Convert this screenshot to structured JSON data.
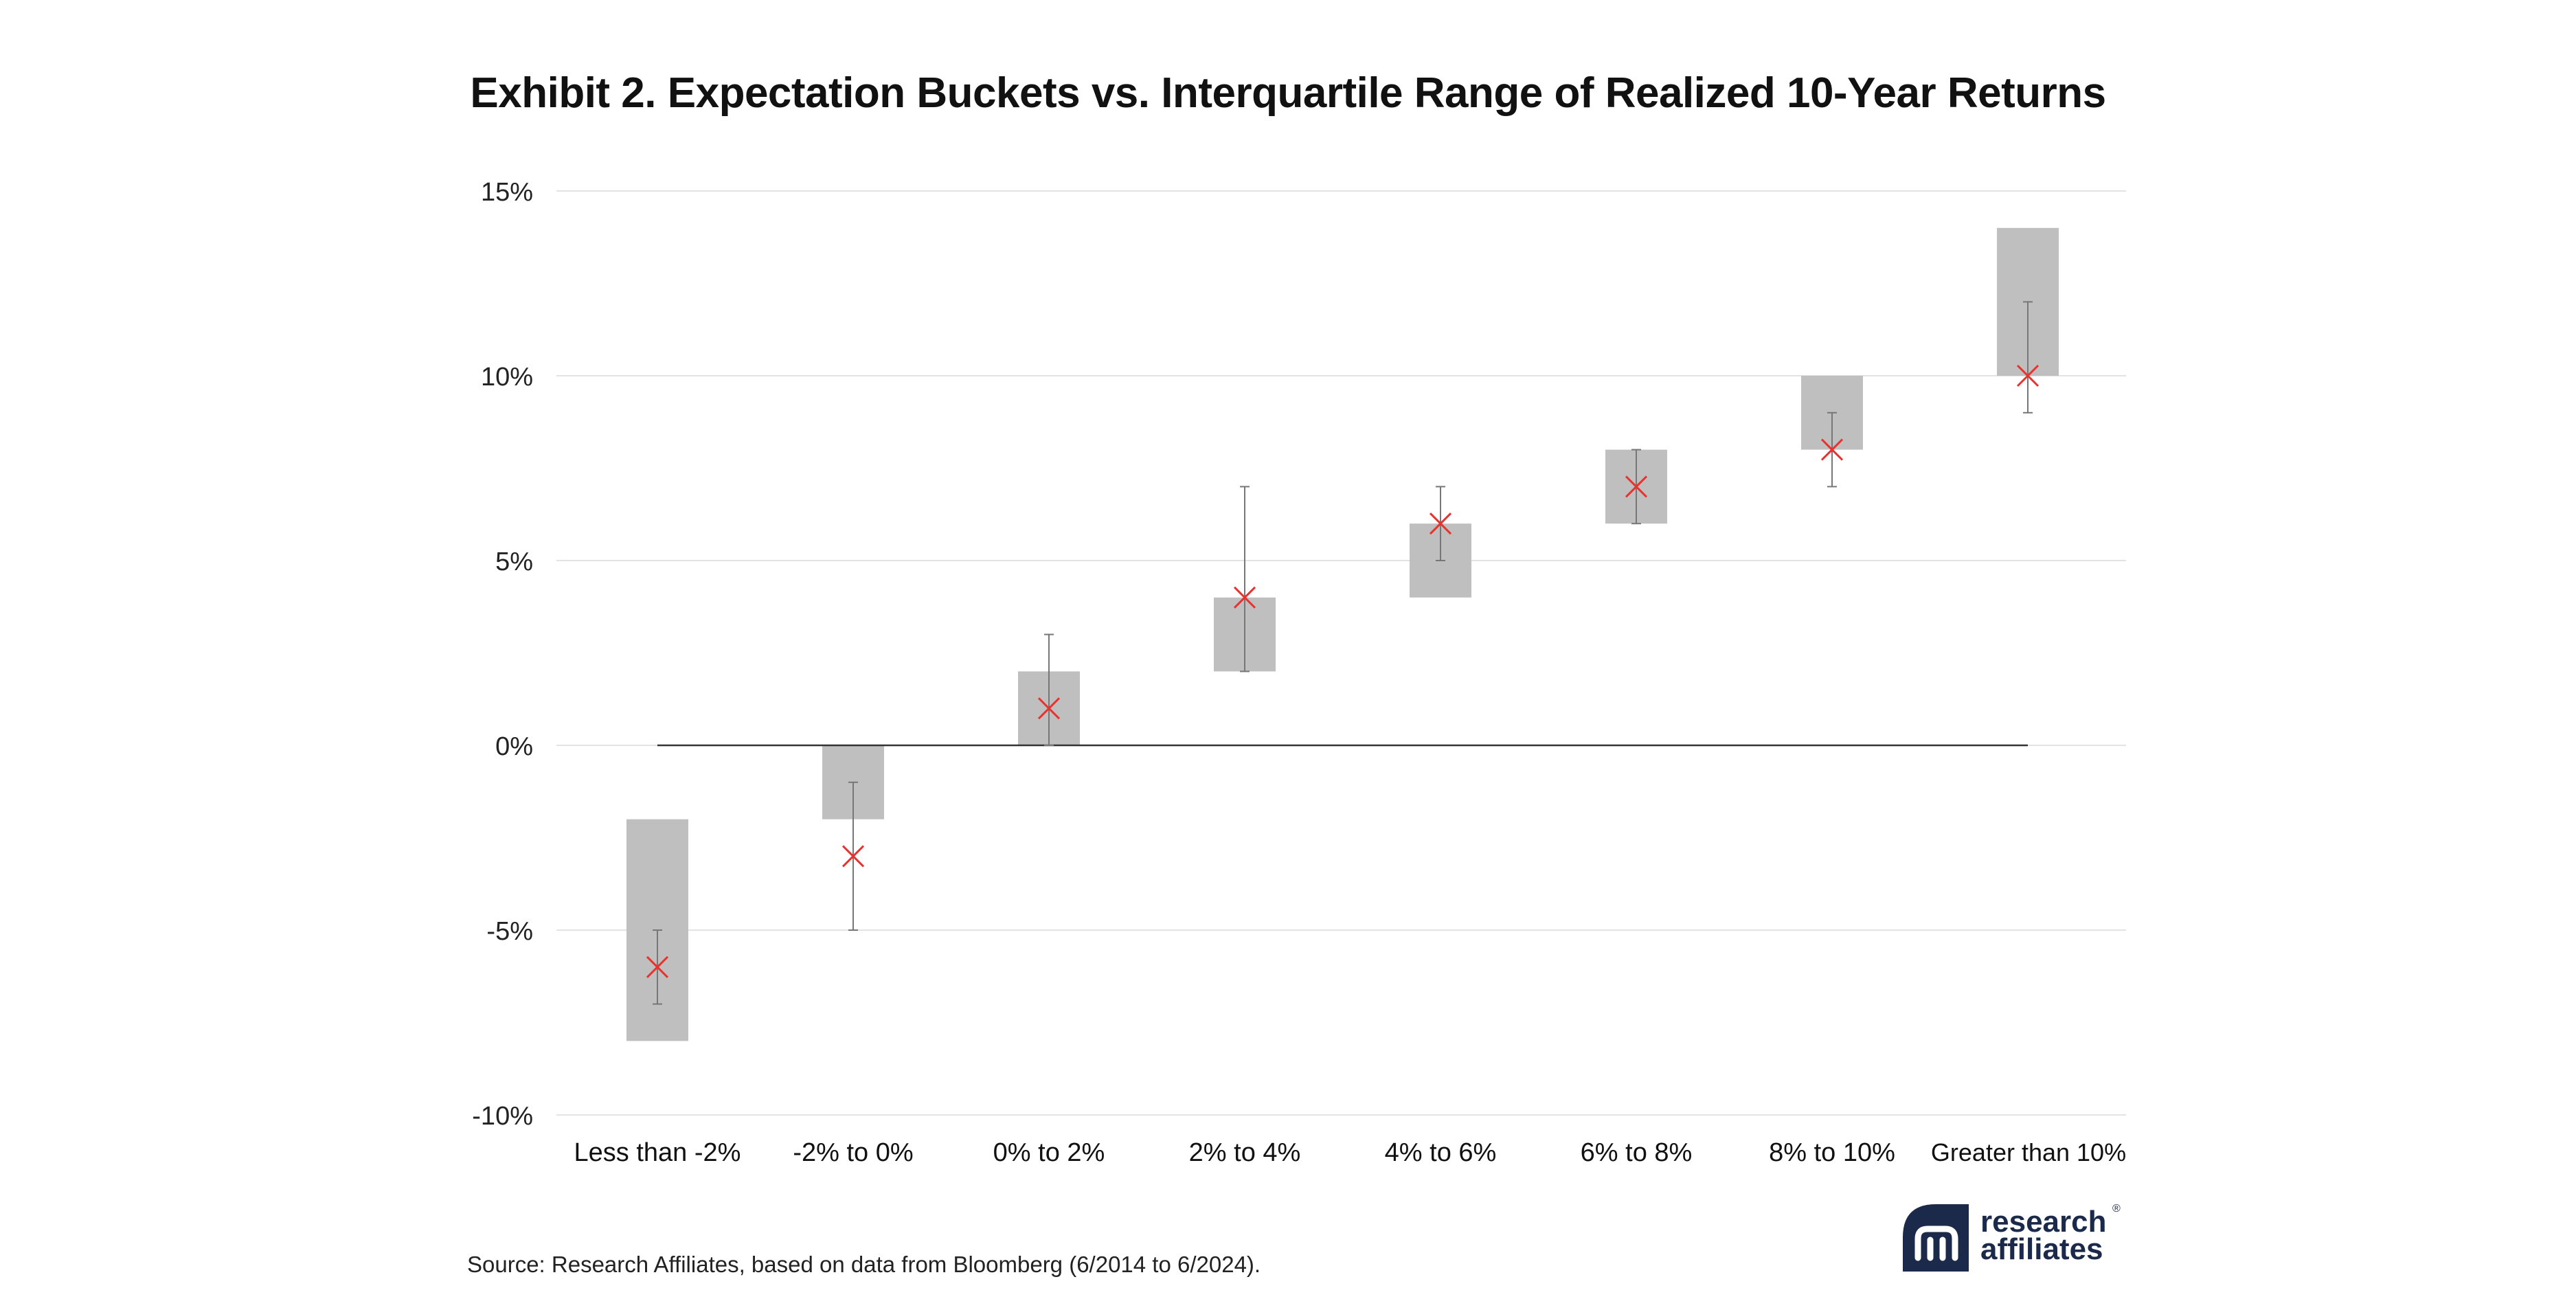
{
  "chart_data": {
    "type": "bar",
    "title": "Exhibit 2. Expectation Buckets vs. Interquartile Range of Realized 10-Year Returns",
    "xlabel": "",
    "ylabel": "",
    "ylim": [
      -10,
      15
    ],
    "y_ticks": [
      15,
      10,
      5,
      0,
      -5,
      -10
    ],
    "y_tick_labels": [
      "15%",
      "10%",
      "5%",
      "0%",
      "-5%",
      "-10%"
    ],
    "grid": true,
    "legend": "none",
    "categories": [
      "Less than -2%",
      "-2% to 0%",
      "0% to 2%",
      "2% to 4%",
      "4% to 6%",
      "6% to 8%",
      "8% to 10%",
      "Greater than 10%"
    ],
    "series": [
      {
        "kind": "expectation-bucket-range",
        "low": [
          -8,
          -2,
          0,
          2,
          4,
          6,
          8,
          10
        ],
        "high": [
          -2,
          0,
          2,
          4,
          6,
          8,
          10,
          14
        ]
      },
      {
        "kind": "realized-median-marker",
        "values": [
          -6,
          -3,
          1,
          4,
          6,
          7,
          8,
          10
        ]
      },
      {
        "kind": "interquartile-range-whisker",
        "low": [
          -7,
          -5,
          0,
          2,
          5,
          6,
          7,
          9
        ],
        "high": [
          -5,
          -1,
          3,
          7,
          7,
          8,
          9,
          12
        ]
      }
    ]
  },
  "source": "Source: Research Affiliates, based on data from Bloomberg (6/2014 to 6/2024).",
  "brand": {
    "line1": "research",
    "line2": "affiliates",
    "reg": "®"
  },
  "colors": {
    "bar": "#bfbfbf",
    "marker": "#e8322e",
    "whisker": "#777777",
    "zero_line": "#333333",
    "grid": "#e3e3e3",
    "brand": "#1b2a4a"
  }
}
